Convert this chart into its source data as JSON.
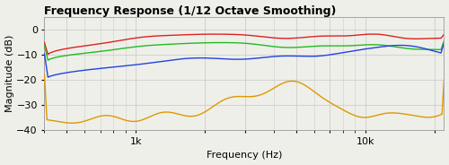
{
  "title": "Frequency Response (1/12 Octave Smoothing)",
  "xlabel": "Frequency (Hz)",
  "ylabel": "Magnitude (dB)",
  "ylim": [
    -40,
    5
  ],
  "yticks": [
    0,
    -10,
    -20,
    -30,
    -40
  ],
  "freq_min": 400,
  "freq_max": 22000,
  "colors": {
    "red": "#dd2222",
    "green": "#22bb22",
    "blue": "#2244dd",
    "orange": "#dd9900"
  },
  "bg_color": "#efefea",
  "grid_color": "#cccccc",
  "title_fontsize": 9,
  "axis_fontsize": 8,
  "tick_fontsize": 8
}
